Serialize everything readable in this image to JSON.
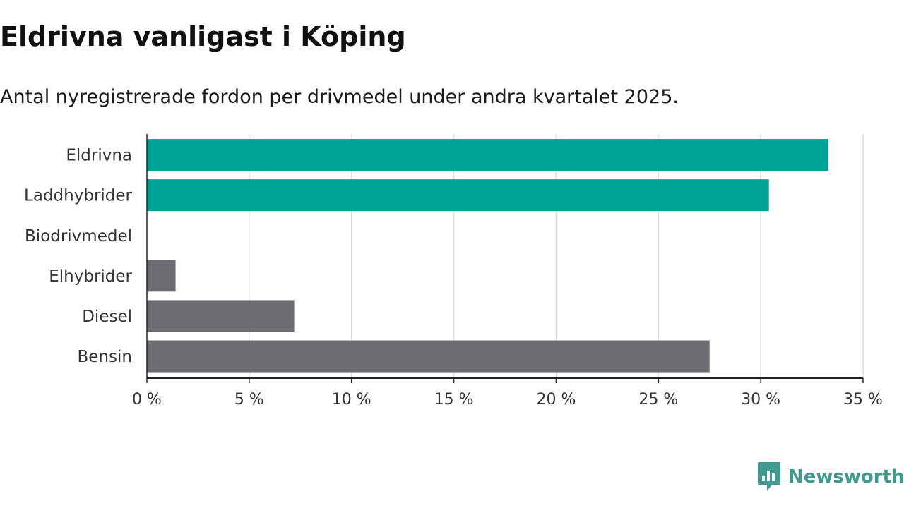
{
  "header": {
    "title": "Eldrivna vanligast i Köping",
    "subtitle": "Antal nyregistrerade fordon per drivmedel under andra kvartalet 2025."
  },
  "brand": {
    "name": "Newsworthy",
    "icon": "newsworthy-logo-icon",
    "color": "#3f9a8f"
  },
  "colors": {
    "highlight": "#00a497",
    "neutral": "#6e6c73",
    "grid": "#dddddd",
    "axis": "#222222"
  },
  "chart_data": {
    "type": "bar",
    "orientation": "horizontal",
    "title": "Eldrivna vanligast i Köping",
    "subtitle": "Antal nyregistrerade fordon per drivmedel under andra kvartalet 2025.",
    "categories": [
      "Eldrivna",
      "Laddhybrider",
      "Biodrivmedel",
      "Elhybrider",
      "Diesel",
      "Bensin"
    ],
    "values": [
      33.3,
      30.4,
      0,
      1.4,
      7.2,
      27.5
    ],
    "highlighted": [
      true,
      true,
      false,
      false,
      false,
      false
    ],
    "xlim": [
      0,
      35
    ],
    "xticks": [
      0,
      5,
      10,
      15,
      20,
      25,
      30,
      35
    ],
    "xtick_labels": [
      "0 %",
      "5 %",
      "10 %",
      "15 %",
      "20 %",
      "25 %",
      "30 %",
      "35 %"
    ],
    "xlabel": "",
    "ylabel": "",
    "grid": "vertical",
    "legend": "none"
  }
}
